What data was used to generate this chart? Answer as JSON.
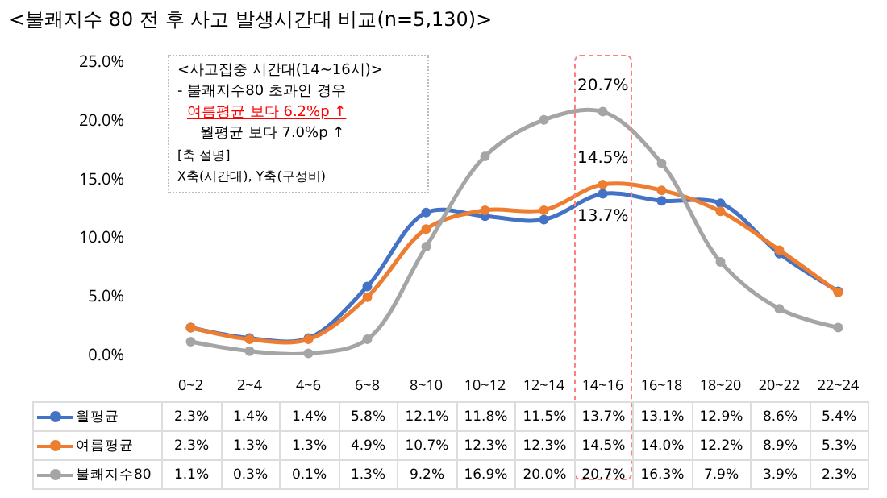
{
  "chart_data": {
    "type": "line",
    "title": "<불쾌지수 80 전 후 사고 발생시간대 비교(n=5,130)>",
    "categories": [
      "0~2",
      "2~4",
      "4~6",
      "6~8",
      "8~10",
      "10~12",
      "12~14",
      "14~16",
      "16~18",
      "18~20",
      "20~22",
      "22~24"
    ],
    "series": [
      {
        "name": "월평균",
        "color": "#4472c4",
        "values": [
          2.3,
          1.4,
          1.4,
          5.8,
          12.1,
          11.8,
          11.5,
          13.7,
          13.1,
          12.9,
          8.6,
          5.4
        ],
        "value_labels": [
          "2.3%",
          "1.4%",
          "1.4%",
          "5.8%",
          "12.1%",
          "11.8%",
          "11.5%",
          "13.7%",
          "13.1%",
          "12.9%",
          "8.6%",
          "5.4%"
        ]
      },
      {
        "name": "여름평균",
        "color": "#ed7d31",
        "values": [
          2.3,
          1.3,
          1.3,
          4.9,
          10.7,
          12.3,
          12.3,
          14.5,
          14.0,
          12.2,
          8.9,
          5.3
        ],
        "value_labels": [
          "2.3%",
          "1.3%",
          "1.3%",
          "4.9%",
          "10.7%",
          "12.3%",
          "12.3%",
          "14.5%",
          "14.0%",
          "12.2%",
          "8.9%",
          "5.3%"
        ]
      },
      {
        "name": "불쾌지수80",
        "color": "#a5a5a5",
        "values": [
          1.1,
          0.3,
          0.1,
          1.3,
          9.2,
          16.9,
          20.0,
          20.7,
          16.3,
          7.9,
          3.9,
          2.3
        ],
        "value_labels": [
          "1.1%",
          "0.3%",
          "0.1%",
          "1.3%",
          "9.2%",
          "16.9%",
          "20.0%",
          "20.7%",
          "16.3%",
          "7.9%",
          "3.9%",
          "2.3%"
        ]
      }
    ],
    "ylim": [
      0,
      25
    ],
    "yticks": [
      {
        "value": 0,
        "label": "0.0%"
      },
      {
        "value": 5,
        "label": "5.0%"
      },
      {
        "value": 10,
        "label": "10.0%"
      },
      {
        "value": 15,
        "label": "15.0%"
      },
      {
        "value": 20,
        "label": "20.0%"
      },
      {
        "value": 25,
        "label": "25.0%"
      }
    ],
    "marker": "circle",
    "line_style": "solid",
    "legend": "bottom left",
    "annotations": [
      "<사고집중 시간대(14~16시)>",
      "- 불쾌지수80 초과인 경우",
      "여름평균 보다 6.2%p ↑",
      "월평균 보다 7.0%p ↑",
      "[축 설명]",
      "X축(시간대), Y축(구성비)",
      {
        "text": "20.7%",
        "x": "14~16",
        "y": 20.7
      },
      {
        "text": "14.5%",
        "x": "14~16",
        "y": 14.5
      },
      {
        "text": "13.7%",
        "x": "14~16",
        "y": 13.7
      }
    ]
  }
}
